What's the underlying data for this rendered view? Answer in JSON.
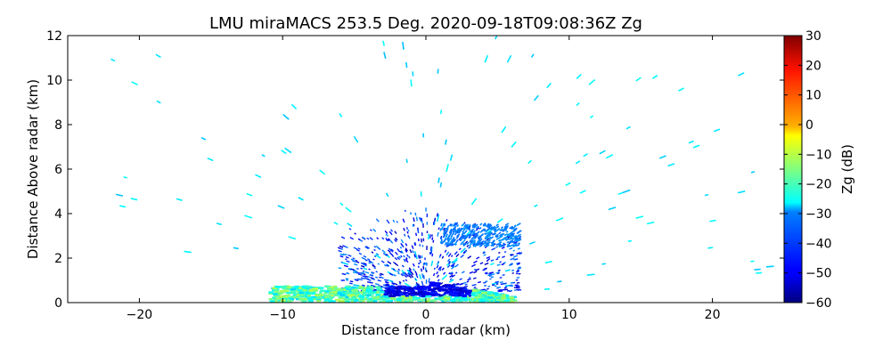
{
  "chart_data": {
    "type": "heatmap",
    "title": "LMU miraMACS 253.5 Deg. 2020-09-18T09:08:36Z  Zg",
    "xlabel": "Distance from radar (km)",
    "ylabel": "Distance Above radar  (km)",
    "xlim": [
      -25,
      25
    ],
    "ylim": [
      0,
      12
    ],
    "x_ticks": [
      "−20",
      "−10",
      "0",
      "10",
      "20"
    ],
    "x_tick_values": [
      -20,
      -10,
      0,
      10,
      20
    ],
    "y_ticks": [
      "0",
      "2",
      "4",
      "6",
      "8",
      "10",
      "12"
    ],
    "y_tick_values": [
      0,
      2,
      4,
      6,
      8,
      10,
      12
    ],
    "grid": false,
    "colorbar": {
      "label": "Zg (dB)",
      "range": [
        -60,
        30
      ],
      "colormap": "jet",
      "ticks": [
        "−60",
        "−50",
        "−40",
        "−30",
        "−20",
        "−10",
        "0",
        "10",
        "20",
        "30"
      ],
      "tick_values": [
        -60,
        -50,
        -40,
        -30,
        -20,
        -10,
        0,
        10,
        20,
        30
      ]
    },
    "features": [
      {
        "name": "ground-clutter-band",
        "x_range": [
          -11,
          6
        ],
        "z_range": [
          0,
          0.7
        ],
        "zg_range": [
          -30,
          -10
        ]
      },
      {
        "name": "cloud-region",
        "x_range": [
          -6,
          6.5
        ],
        "z_range": [
          0.5,
          4
        ],
        "zg_range": [
          -55,
          -35
        ]
      },
      {
        "name": "cloud-layer",
        "x_range": [
          1,
          6.5
        ],
        "z_range": [
          2.5,
          3.5
        ],
        "zg_range": [
          -40,
          -35
        ]
      },
      {
        "name": "sparse-noise",
        "x_range": [
          -24,
          24
        ],
        "z_range": [
          0,
          12
        ],
        "zg_range": [
          -32,
          -25
        ]
      }
    ]
  }
}
